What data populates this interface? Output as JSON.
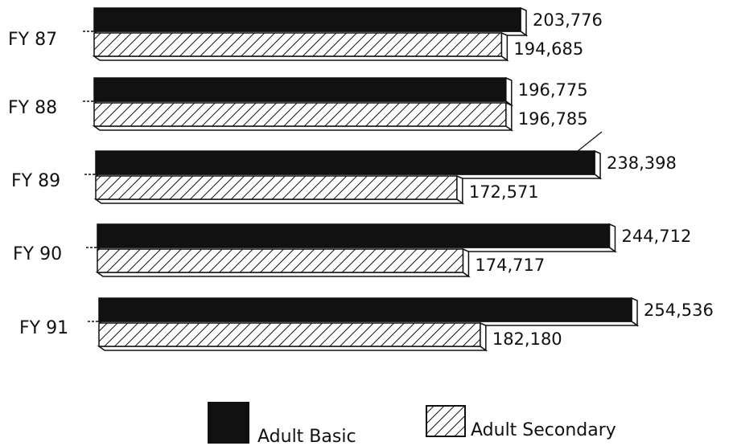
{
  "chart_data": {
    "type": "bar",
    "orientation": "horizontal",
    "categories": [
      "FY 87",
      "FY 88",
      "FY 89",
      "FY 90",
      "FY 91"
    ],
    "series": [
      {
        "name": "Adult Basic",
        "values": [
          203776,
          196775,
          238398,
          244712,
          254536
        ],
        "labels": [
          "203,776",
          "196,775",
          "238,398",
          "244,712",
          "254,536"
        ],
        "fill": "solid-black"
      },
      {
        "name": "Adult Secondary",
        "values": [
          194685,
          196785,
          172571,
          174717,
          182180
        ],
        "labels": [
          "194,685",
          "196,785",
          "172,571",
          "174,717",
          "182,180"
        ],
        "fill": "diagonal-hatch"
      }
    ],
    "title": "",
    "xlabel": "",
    "ylabel": "",
    "legend_position": "bottom-center",
    "colors": {
      "ink": "#111111",
      "background": "#ffffff"
    }
  }
}
